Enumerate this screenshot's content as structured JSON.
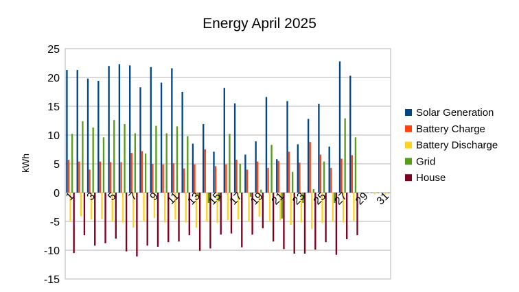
{
  "chart_data": {
    "type": "bar",
    "title": "Energy April 2025",
    "xlabel": "",
    "ylabel": "kWh",
    "ylim": [
      -15,
      25
    ],
    "yticks": [
      -15,
      -10,
      -5,
      0,
      5,
      10,
      15,
      20,
      25
    ],
    "grid": "horizontal",
    "legend": "right",
    "x_tick_labels": [
      {
        "day": 1,
        "label": "1"
      },
      {
        "day": 3,
        "label": "3"
      },
      {
        "day": 5,
        "label": "5"
      },
      {
        "day": 7,
        "label": "7"
      },
      {
        "day": 9,
        "label": "9"
      },
      {
        "day": 11,
        "label": "11"
      },
      {
        "day": 13,
        "label": "13"
      },
      {
        "day": 15,
        "label": "15"
      },
      {
        "day": 17,
        "label": "17"
      },
      {
        "day": 19,
        "label": "19"
      },
      {
        "day": 21,
        "label": "21"
      },
      {
        "day": 23,
        "label": "23"
      },
      {
        "day": 25,
        "label": "25"
      },
      {
        "day": 27,
        "label": "27"
      },
      {
        "day": 29,
        "label": "29"
      },
      {
        "day": 31,
        "label": "31"
      }
    ],
    "categories": [
      1,
      2,
      3,
      4,
      5,
      6,
      7,
      8,
      9,
      10,
      11,
      12,
      13,
      14,
      15,
      16,
      17,
      18,
      19,
      20,
      21,
      22,
      23,
      24,
      25,
      26,
      27,
      28,
      29,
      30,
      31
    ],
    "series": [
      {
        "name": "Solar Generation",
        "color": "#004586",
        "values": [
          21.3,
          21.3,
          19.8,
          19.4,
          22.0,
          22.3,
          22.1,
          18.3,
          21.8,
          19.1,
          21.6,
          17.5,
          8.5,
          11.9,
          7.1,
          18.2,
          15.5,
          6.6,
          8.9,
          16.6,
          5.8,
          15.9,
          8.4,
          12.8,
          15.4,
          8.0,
          22.8,
          20.3,
          0,
          0,
          0
        ]
      },
      {
        "name": "Battery Charge",
        "color": "#ff420e",
        "values": [
          5.7,
          5.4,
          4.0,
          5.4,
          5.3,
          5.3,
          6.9,
          7.2,
          5.0,
          4.9,
          5.1,
          4.2,
          4.9,
          7.5,
          4.6,
          4.9,
          5.7,
          4.0,
          5.4,
          4.3,
          5.5,
          7.1,
          5.2,
          8.8,
          6.6,
          4.3,
          5.9,
          6.5,
          0,
          0,
          0
        ]
      },
      {
        "name": "Battery Discharge",
        "color": "#ffd320",
        "values": [
          -5.0,
          -4.1,
          -4.7,
          -4.6,
          -5.0,
          -5.2,
          -6.1,
          -5.0,
          -4.4,
          -5.2,
          -4.7,
          -5.2,
          -6.1,
          -5.1,
          -5.3,
          -4.8,
          -4.7,
          -5.0,
          -4.2,
          -5.0,
          -4.8,
          -5.6,
          -5.2,
          -6.3,
          -5.3,
          -5.1,
          -5.2,
          -4.9,
          -0.3,
          -0.3,
          -0.3
        ]
      },
      {
        "name": "Grid",
        "color": "#579d1c",
        "values": [
          10.2,
          12.4,
          11.3,
          9.6,
          12.6,
          11.9,
          10.3,
          6.8,
          11.6,
          10.3,
          11.5,
          9.8,
          -0.5,
          -1.8,
          -1.5,
          10.2,
          5.0,
          -0.7,
          0.5,
          8.3,
          -4.5,
          3.6,
          -1.8,
          0.6,
          5.4,
          -1.8,
          12.9,
          9.6,
          0,
          0,
          0
        ]
      },
      {
        "name": "House",
        "color": "#7e0021",
        "values": [
          -10.5,
          -7.4,
          -9.2,
          -8.8,
          -8.0,
          -10.2,
          -11.1,
          -9.2,
          -9.4,
          -8.6,
          -8.5,
          -7.4,
          -10.1,
          -9.7,
          -7.3,
          -7.1,
          -9.5,
          -7.3,
          -6.2,
          -8.5,
          -9.8,
          -10.6,
          -10.6,
          -9.9,
          -8.6,
          -10.8,
          -8.1,
          -7.4,
          0,
          0,
          0
        ]
      }
    ]
  }
}
